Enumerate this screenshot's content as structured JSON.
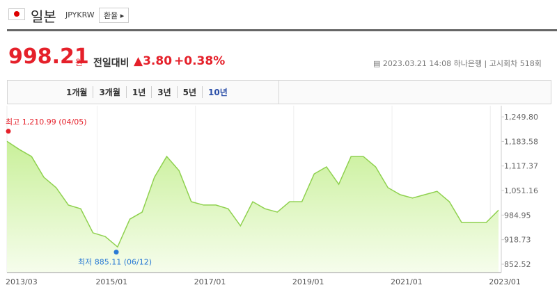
{
  "header": {
    "name": "일본",
    "code": "JPYKRW",
    "button": "환율"
  },
  "quote": {
    "price": "998.21",
    "unit": "원",
    "change_label": "전일대비",
    "change": "▲3.80",
    "change_pct": "+0.38%",
    "datetime": "2023.03.21 14:08",
    "bank": "하나은행",
    "round": "고시회차 518회"
  },
  "tabs": [
    "1개월",
    "3개월",
    "1년",
    "3년",
    "5년",
    "10년"
  ],
  "selected_tab": "10년",
  "chart_data": {
    "type": "area",
    "color": "#8fd14f",
    "x": [
      "2013/03",
      "2013/06",
      "2013/09",
      "2013/12",
      "2014/03",
      "2014/06",
      "2014/09",
      "2014/12",
      "2015/03",
      "2015/06",
      "2015/09",
      "2015/12",
      "2016/03",
      "2016/06",
      "2016/09",
      "2016/12",
      "2017/03",
      "2017/06",
      "2017/09",
      "2017/12",
      "2018/03",
      "2018/06",
      "2018/09",
      "2018/12",
      "2019/03",
      "2019/06",
      "2019/09",
      "2019/12",
      "2020/03",
      "2020/06",
      "2020/09",
      "2020/12",
      "2021/03",
      "2021/06",
      "2021/09",
      "2021/12",
      "2022/03",
      "2022/06",
      "2022/09",
      "2022/12",
      "2023/03"
    ],
    "values": [
      1184,
      1162,
      1143,
      1087,
      1059,
      1012,
      1002,
      937,
      927,
      899,
      974,
      993,
      1087,
      1143,
      1105,
      1021,
      1012,
      1012,
      1002,
      956,
      1021,
      1002,
      993,
      1021,
      1021,
      1096,
      1115,
      1068,
      1143,
      1143,
      1115,
      1059,
      1040,
      1031,
      1040,
      1049,
      1021,
      965,
      965,
      965,
      998.21
    ],
    "xticks": [
      "2013/03",
      "2015/01",
      "2017/01",
      "2019/01",
      "2021/01",
      "2023/01"
    ],
    "ylim": [
      830,
      1280
    ],
    "yticks": [
      852.52,
      918.73,
      984.95,
      {
        "value": 1051.16,
        "label": "1,051.16"
      },
      {
        "value": 1117.37,
        "label": "1,117.37"
      },
      {
        "value": 1183.58,
        "label": "1,183.58"
      },
      {
        "value": 1249.8,
        "label": "1,249.80"
      }
    ],
    "annotations": [
      {
        "text": "최고 1,210.99 (04/05)",
        "value": 1210.99,
        "color": "#e5202a"
      },
      {
        "text": "최저 885.11 (06/12)",
        "value": 885.11,
        "color": "#2a7ad5"
      }
    ]
  }
}
